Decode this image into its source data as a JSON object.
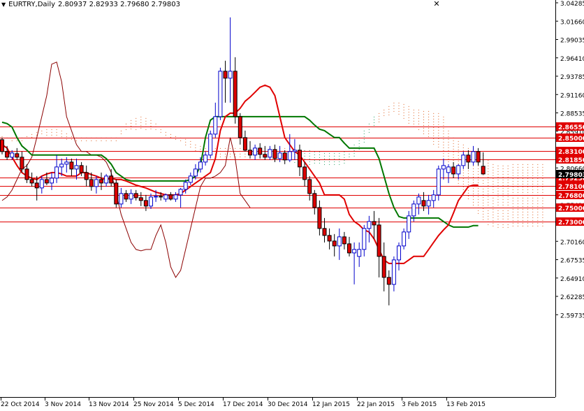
{
  "header": {
    "symbol_period": "EURTRY,Daily",
    "ohlc": "2.80937 2.82933 2.79680 2.79803",
    "close_glyph": "✕"
  },
  "colors": {
    "bull_body": "#ffffff",
    "bull_outline": "#0000cc",
    "bear_body": "#dd0000",
    "wick_up": "#0000cc",
    "wick_down": "#000000",
    "tenkan": "#e00000",
    "kijun": "#007700",
    "chikou": "#8b0000",
    "cloud_bear": "#e06020",
    "cloud_bull": "#20a060",
    "hline": "#e00000",
    "price_box": "#e00000",
    "current_box": "#000000"
  },
  "chart_data": {
    "type": "candlestick",
    "title": "EURTRY,Daily",
    "ylim": [
      2.58,
      3.05
    ],
    "y_ticks": [
      "3.04285",
      "3.01660",
      "2.99035",
      "2.96410",
      "2.93785",
      "2.91160",
      "2.88535",
      "2.85910",
      "2.83285",
      "2.80660",
      "2.78035",
      "2.75410",
      "2.72785",
      "2.70160",
      "2.67535",
      "2.64910",
      "2.62285",
      "2.59735"
    ],
    "x_labels": [
      "22 Oct 2014",
      "3 Nov 2014",
      "13 Nov 2014",
      "25 Nov 2014",
      "5 Dec 2014",
      "17 Dec 2014",
      "30 Dec 2014",
      "12 Jan 2015",
      "22 Jan 2015",
      "3 Feb 2015",
      "13 Feb 2015"
    ],
    "horizontal_levels": [
      {
        "value": 2.8655,
        "label": "2.86550"
      },
      {
        "value": 2.85,
        "label": "2.85000"
      },
      {
        "value": 2.831,
        "label": "2.83100"
      },
      {
        "value": 2.8185,
        "label": "2.81850"
      },
      {
        "value": 2.7925,
        "label": "2.79250"
      },
      {
        "value": 2.781,
        "label": "2.78100"
      },
      {
        "value": 2.768,
        "label": "2.76800"
      },
      {
        "value": 2.75,
        "label": "2.75000"
      },
      {
        "value": 2.73,
        "label": "2.73000"
      }
    ],
    "current_price": {
      "value": 2.79803,
      "label": "2.79803"
    },
    "candles": [
      [
        2.847,
        2.85,
        2.826,
        2.83
      ],
      [
        2.83,
        2.838,
        2.818,
        2.822
      ],
      [
        2.822,
        2.832,
        2.818,
        2.828
      ],
      [
        2.827,
        2.835,
        2.818,
        2.822
      ],
      [
        2.822,
        2.83,
        2.8,
        2.805
      ],
      [
        2.805,
        2.812,
        2.785,
        2.79
      ],
      [
        2.79,
        2.8,
        2.78,
        2.785
      ],
      [
        2.785,
        2.795,
        2.76,
        2.778
      ],
      [
        2.778,
        2.795,
        2.77,
        2.79
      ],
      [
        2.79,
        2.8,
        2.782,
        2.785
      ],
      [
        2.785,
        2.8,
        2.775,
        2.792
      ],
      [
        2.792,
        2.825,
        2.785,
        2.808
      ],
      [
        2.808,
        2.82,
        2.795,
        2.812
      ],
      [
        2.812,
        2.822,
        2.8,
        2.815
      ],
      [
        2.815,
        2.82,
        2.795,
        2.805
      ],
      [
        2.805,
        2.82,
        2.79,
        2.81
      ],
      [
        2.81,
        2.815,
        2.795,
        2.8
      ],
      [
        2.8,
        2.81,
        2.78,
        2.79
      ],
      [
        2.79,
        2.8,
        2.774,
        2.78
      ],
      [
        2.78,
        2.795,
        2.77,
        2.79
      ],
      [
        2.79,
        2.8,
        2.775,
        2.785
      ],
      [
        2.785,
        2.798,
        2.78,
        2.795
      ],
      [
        2.795,
        2.805,
        2.78,
        2.785
      ],
      [
        2.785,
        2.79,
        2.75,
        2.755
      ],
      [
        2.755,
        2.778,
        2.75,
        2.77
      ],
      [
        2.77,
        2.775,
        2.758,
        2.762
      ],
      [
        2.762,
        2.776,
        2.755,
        2.77
      ],
      [
        2.77,
        2.775,
        2.76,
        2.764
      ],
      [
        2.764,
        2.772,
        2.752,
        2.76
      ],
      [
        2.76,
        2.768,
        2.745,
        2.752
      ],
      [
        2.752,
        2.77,
        2.748,
        2.765
      ],
      [
        2.765,
        2.775,
        2.758,
        2.766
      ],
      [
        2.766,
        2.772,
        2.76,
        2.765
      ],
      [
        2.762,
        2.77,
        2.758,
        2.768
      ],
      [
        2.768,
        2.772,
        2.76,
        2.762
      ],
      [
        2.762,
        2.772,
        2.758,
        2.768
      ],
      [
        2.768,
        2.778,
        2.75,
        2.776
      ],
      [
        2.776,
        2.79,
        2.77,
        2.786
      ],
      [
        2.786,
        2.8,
        2.782,
        2.795
      ],
      [
        2.795,
        2.812,
        2.79,
        2.805
      ],
      [
        2.805,
        2.822,
        2.8,
        2.815
      ],
      [
        2.815,
        2.83,
        2.81,
        2.825
      ],
      [
        2.825,
        2.86,
        2.82,
        2.855
      ],
      [
        2.855,
        2.9,
        2.85,
        2.88
      ],
      [
        2.88,
        2.95,
        2.875,
        2.945
      ],
      [
        2.945,
        2.96,
        2.9,
        2.935
      ],
      [
        2.935,
        3.022,
        2.9,
        2.945
      ],
      [
        2.945,
        2.965,
        2.87,
        2.88
      ],
      [
        2.88,
        2.885,
        2.84,
        2.85
      ],
      [
        2.85,
        2.86,
        2.83,
        2.832
      ],
      [
        2.832,
        2.845,
        2.82,
        2.825
      ],
      [
        2.825,
        2.84,
        2.818,
        2.835
      ],
      [
        2.835,
        2.842,
        2.82,
        2.826
      ],
      [
        2.826,
        2.838,
        2.818,
        2.822
      ],
      [
        2.822,
        2.838,
        2.818,
        2.833
      ],
      [
        2.833,
        2.84,
        2.815,
        2.82
      ],
      [
        2.82,
        2.838,
        2.815,
        2.828
      ],
      [
        2.828,
        2.832,
        2.812,
        2.818
      ],
      [
        2.818,
        2.855,
        2.815,
        2.83
      ],
      [
        2.83,
        2.848,
        2.818,
        2.832
      ],
      [
        2.832,
        2.84,
        2.795,
        2.808
      ],
      [
        2.808,
        2.815,
        2.78,
        2.79
      ],
      [
        2.79,
        2.795,
        2.76,
        2.77
      ],
      [
        2.77,
        2.775,
        2.74,
        2.75
      ],
      [
        2.75,
        2.76,
        2.71,
        2.72
      ],
      [
        2.72,
        2.735,
        2.7,
        2.71
      ],
      [
        2.71,
        2.72,
        2.69,
        2.702
      ],
      [
        2.702,
        2.712,
        2.68,
        2.695
      ],
      [
        2.695,
        2.72,
        2.675,
        2.708
      ],
      [
        2.708,
        2.715,
        2.69,
        2.698
      ],
      [
        2.698,
        2.708,
        2.68,
        2.685
      ],
      [
        2.685,
        2.7,
        2.64,
        2.69
      ],
      [
        2.68,
        2.7,
        2.665,
        2.69
      ],
      [
        2.69,
        2.725,
        2.68,
        2.72
      ],
      [
        2.72,
        2.738,
        2.7,
        2.73
      ],
      [
        2.73,
        2.745,
        2.705,
        2.725
      ],
      [
        2.725,
        2.735,
        2.65,
        2.68
      ],
      [
        2.68,
        2.7,
        2.63,
        2.65
      ],
      [
        2.65,
        2.66,
        2.61,
        2.64
      ],
      [
        2.64,
        2.68,
        2.63,
        2.675
      ],
      [
        2.675,
        2.7,
        2.66,
        2.695
      ],
      [
        2.695,
        2.72,
        2.69,
        2.715
      ],
      [
        2.715,
        2.745,
        2.705,
        2.738
      ],
      [
        2.738,
        2.76,
        2.73,
        2.755
      ],
      [
        2.755,
        2.77,
        2.74,
        2.765
      ],
      [
        2.76,
        2.772,
        2.745,
        2.752
      ],
      [
        2.752,
        2.768,
        2.74,
        2.76
      ],
      [
        2.76,
        2.775,
        2.75,
        2.768
      ],
      [
        2.768,
        2.81,
        2.76,
        2.805
      ],
      [
        2.805,
        2.82,
        2.79,
        2.81
      ],
      [
        2.8,
        2.812,
        2.785,
        2.808
      ],
      [
        2.808,
        2.815,
        2.792,
        2.798
      ],
      [
        2.798,
        2.812,
        2.79,
        2.81
      ],
      [
        2.81,
        2.83,
        2.805,
        2.825
      ],
      [
        2.825,
        2.832,
        2.805,
        2.815
      ],
      [
        2.815,
        2.838,
        2.81,
        2.83
      ],
      [
        2.83,
        2.835,
        2.81,
        2.815
      ],
      [
        2.809,
        2.829,
        2.797,
        2.798
      ]
    ],
    "tenkan": [
      2.84,
      2.835,
      2.822,
      2.81,
      2.8,
      2.795,
      2.792,
      2.79,
      2.795,
      2.798,
      2.8,
      2.8,
      2.798,
      2.795,
      2.795,
      2.795,
      2.8,
      2.8,
      2.797,
      2.795,
      2.792,
      2.79,
      2.792,
      2.79,
      2.79,
      2.788,
      2.785,
      2.782,
      2.78,
      2.778,
      2.775,
      2.772,
      2.77,
      2.768,
      2.768,
      2.768,
      2.77,
      2.775,
      2.78,
      2.785,
      2.79,
      2.795,
      2.8,
      2.82,
      2.86,
      2.88,
      2.885,
      2.885,
      2.892,
      2.902,
      2.908,
      2.915,
      2.922,
      2.925,
      2.922,
      2.91,
      2.88,
      2.85,
      2.84,
      2.83,
      2.825,
      2.815,
      2.805,
      2.795,
      2.785,
      2.768,
      2.768,
      2.768,
      2.768,
      2.762,
      2.74,
      2.73,
      2.725,
      2.718,
      2.715,
      2.705,
      2.69,
      2.675,
      2.67,
      2.67,
      2.67,
      2.67,
      2.675,
      2.68,
      2.68,
      2.68,
      2.69,
      2.7,
      2.71,
      2.718,
      2.725,
      2.742,
      2.76,
      2.77,
      2.78,
      2.782,
      2.782
    ],
    "kijun": [
      2.872,
      2.87,
      2.865,
      2.85,
      2.838,
      2.832,
      2.825,
      2.825,
      2.825,
      2.825,
      2.825,
      2.825,
      2.825,
      2.825,
      2.825,
      2.825,
      2.825,
      2.825,
      2.825,
      2.825,
      2.825,
      2.82,
      2.812,
      2.8,
      2.795,
      2.79,
      2.788,
      2.788,
      2.788,
      2.788,
      2.788,
      2.788,
      2.788,
      2.788,
      2.788,
      2.788,
      2.788,
      2.788,
      2.79,
      2.795,
      2.81,
      2.85,
      2.875,
      2.88,
      2.88,
      2.88,
      2.88,
      2.88,
      2.88,
      2.88,
      2.88,
      2.88,
      2.88,
      2.88,
      2.88,
      2.88,
      2.88,
      2.88,
      2.88,
      2.88,
      2.88,
      2.88,
      2.875,
      2.868,
      2.862,
      2.86,
      2.855,
      2.85,
      2.85,
      2.842,
      2.835,
      2.835,
      2.835,
      2.835,
      2.835,
      2.835,
      2.82,
      2.795,
      2.77,
      2.75,
      2.737,
      2.735,
      2.735,
      2.735,
      2.735,
      2.735,
      2.735,
      2.735,
      2.735,
      2.73,
      2.725,
      2.722,
      2.722,
      2.722,
      2.722,
      2.724,
      2.724
    ],
    "chikou": [
      2.76,
      2.765,
      2.775,
      2.79,
      2.805,
      2.81,
      2.822,
      2.85,
      2.88,
      2.91,
      2.955,
      2.958,
      2.93,
      2.88,
      2.86,
      2.84,
      2.83,
      2.83,
      2.825,
      2.825,
      2.822,
      2.815,
      2.8,
      2.77,
      2.74,
      2.72,
      2.7,
      2.69,
      2.688,
      2.69,
      2.69,
      2.71,
      2.725,
      2.7,
      2.665,
      2.65,
      2.66,
      2.69,
      2.72,
      2.75,
      2.78,
      2.792,
      2.792,
      2.795,
      2.8,
      2.81,
      2.85,
      2.82,
      2.77,
      2.76,
      2.75
    ],
    "cloud_bull_start": 24,
    "cloud_upper": [
      2.852,
      2.85,
      2.85,
      2.85,
      2.85,
      2.852,
      2.855,
      2.858,
      2.86,
      2.862,
      2.862,
      2.862,
      2.86,
      2.856,
      2.852,
      2.85,
      2.85,
      2.85,
      2.85,
      2.85,
      2.85,
      2.85,
      2.85,
      2.85,
      2.86,
      2.87,
      2.875,
      2.878,
      2.88,
      2.878,
      2.875,
      2.87,
      2.862,
      2.858,
      2.855,
      2.852,
      2.85,
      2.848,
      2.845,
      2.84,
      2.838,
      2.835,
      2.835,
      2.835,
      2.835,
      2.835,
      2.835,
      2.835,
      2.835,
      2.835,
      2.835,
      2.835,
      2.835,
      2.835,
      2.835,
      2.835,
      2.835,
      2.835,
      2.835,
      2.835,
      2.835,
      2.832,
      2.832,
      2.83,
      2.83,
      2.828,
      2.828,
      2.828,
      2.828,
      2.83,
      2.835,
      2.84,
      2.85,
      2.86,
      2.87,
      2.88,
      2.885,
      2.89,
      2.895,
      2.9,
      2.9,
      2.898,
      2.895,
      2.89,
      2.89,
      2.888,
      2.888,
      2.885,
      2.885,
      2.88,
      2.86,
      2.85,
      2.845,
      2.84,
      2.835,
      2.83,
      2.83,
      2.825,
      2.818,
      2.812,
      2.81,
      2.81,
      2.81,
      2.812,
      2.812,
      2.812,
      2.812,
      2.812,
      2.812,
      2.812
    ],
    "cloud_lower": [
      2.85,
      2.848,
      2.845,
      2.845,
      2.845,
      2.848,
      2.85,
      2.852,
      2.852,
      2.852,
      2.852,
      2.85,
      2.848,
      2.846,
      2.845,
      2.845,
      2.845,
      2.845,
      2.845,
      2.845,
      2.845,
      2.845,
      2.845,
      2.845,
      2.855,
      2.86,
      2.86,
      2.86,
      2.86,
      2.86,
      2.86,
      2.858,
      2.855,
      2.85,
      2.848,
      2.845,
      2.842,
      2.838,
      2.835,
      2.83,
      2.828,
      2.825,
      2.822,
      2.82,
      2.82,
      2.818,
      2.818,
      2.818,
      2.818,
      2.818,
      2.818,
      2.818,
      2.818,
      2.818,
      2.818,
      2.818,
      2.818,
      2.818,
      2.815,
      2.812,
      2.81,
      2.81,
      2.81,
      2.81,
      2.81,
      2.81,
      2.808,
      2.808,
      2.808,
      2.81,
      2.815,
      2.82,
      2.83,
      2.84,
      2.855,
      2.865,
      2.872,
      2.878,
      2.882,
      2.885,
      2.88,
      2.875,
      2.87,
      2.865,
      2.86,
      2.855,
      2.848,
      2.84,
      2.835,
      2.82,
      2.8,
      2.79,
      2.78,
      2.77,
      2.76,
      2.75,
      2.74,
      2.73,
      2.725,
      2.72,
      2.72,
      2.72,
      2.72,
      2.72,
      2.72,
      2.72,
      2.72,
      2.72,
      2.72,
      2.72
    ]
  }
}
